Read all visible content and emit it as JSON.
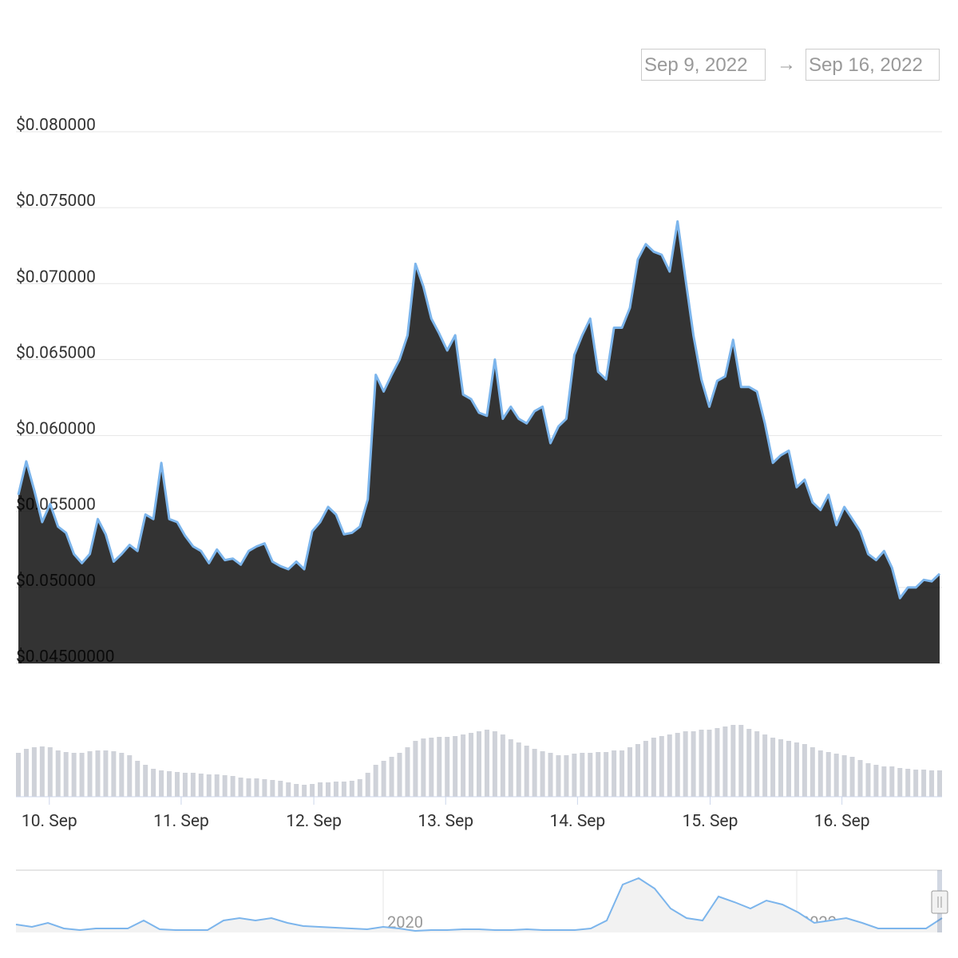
{
  "date_range": {
    "from": "Sep 9, 2022",
    "separator": "→",
    "to": "Sep 16, 2022"
  },
  "chart_data": {
    "type": "area",
    "color": "#7cb5ec",
    "fill": "#000000",
    "values": [
      0.0561,
      0.0583,
      0.0564,
      0.0543,
      0.0555,
      0.054,
      0.0536,
      0.0522,
      0.0516,
      0.0522,
      0.0545,
      0.0535,
      0.0517,
      0.0522,
      0.0528,
      0.0524,
      0.0548,
      0.0545,
      0.0582,
      0.0545,
      0.0543,
      0.0534,
      0.0527,
      0.0524,
      0.0516,
      0.0525,
      0.0518,
      0.0519,
      0.0515,
      0.0524,
      0.0527,
      0.0529,
      0.0517,
      0.0514,
      0.0512,
      0.0517,
      0.0512,
      0.0537,
      0.0543,
      0.0553,
      0.0548,
      0.0535,
      0.0536,
      0.054,
      0.0558,
      0.064,
      0.0629,
      0.064,
      0.065,
      0.0666,
      0.0713,
      0.0698,
      0.0677,
      0.0667,
      0.0656,
      0.0666,
      0.0627,
      0.0624,
      0.0615,
      0.0613,
      0.065,
      0.0611,
      0.0619,
      0.0611,
      0.0608,
      0.0616,
      0.0619,
      0.0595,
      0.0606,
      0.0611,
      0.0653,
      0.0666,
      0.0677,
      0.0642,
      0.0637,
      0.0671,
      0.0671,
      0.0684,
      0.0716,
      0.0726,
      0.0721,
      0.0719,
      0.0708,
      0.0741,
      0.0703,
      0.0666,
      0.0637,
      0.0619,
      0.0636,
      0.0639,
      0.0663,
      0.0632,
      0.0632,
      0.0629,
      0.0608,
      0.0582,
      0.0587,
      0.059,
      0.0566,
      0.0571,
      0.0556,
      0.0551,
      0.0561,
      0.0541,
      0.0553,
      0.0545,
      0.0537,
      0.0522,
      0.0518,
      0.0524,
      0.0513,
      0.0493,
      0.05,
      0.05,
      0.0505,
      0.0504,
      0.0509
    ],
    "xlim": [
      0,
      116
    ],
    "xticks": [
      {
        "value": 3.9,
        "label": "10. Sep"
      },
      {
        "value": 20.5,
        "label": "11. Sep"
      },
      {
        "value": 37.2,
        "label": "12. Sep"
      },
      {
        "value": 53.8,
        "label": "13. Sep"
      },
      {
        "value": 70.4,
        "label": "14. Sep"
      },
      {
        "value": 87.1,
        "label": "15. Sep"
      },
      {
        "value": 103.7,
        "label": "16. Sep"
      }
    ],
    "ylim": [
      0.045,
      0.08
    ],
    "yticks": [
      {
        "value": 0.08,
        "label": "$0.080000"
      },
      {
        "value": 0.075,
        "label": "$0.075000"
      },
      {
        "value": 0.07,
        "label": "$0.070000"
      },
      {
        "value": 0.065,
        "label": "$0.065000"
      },
      {
        "value": 0.06,
        "label": "$0.060000"
      },
      {
        "value": 0.055,
        "label": "$0.055000"
      },
      {
        "value": 0.05,
        "label": "$0.050000"
      },
      {
        "value": 0.045,
        "label": "$0.04500000"
      }
    ],
    "grid": true,
    "volume": {
      "color": "#cfd2d9",
      "values": [
        55,
        60,
        62,
        63,
        62,
        58,
        56,
        55,
        55,
        57,
        58,
        58,
        57,
        55,
        52,
        45,
        40,
        35,
        33,
        32,
        31,
        30,
        30,
        29,
        28,
        28,
        27,
        26,
        24,
        23,
        23,
        22,
        21,
        20,
        18,
        16,
        15,
        16,
        18,
        18,
        19,
        19,
        20,
        22,
        30,
        40,
        45,
        50,
        55,
        62,
        70,
        73,
        74,
        75,
        75,
        76,
        78,
        80,
        82,
        84,
        82,
        78,
        72,
        68,
        64,
        60,
        57,
        55,
        52,
        52,
        54,
        55,
        55,
        56,
        56,
        58,
        58,
        62,
        66,
        70,
        74,
        76,
        78,
        80,
        82,
        82,
        84,
        84,
        86,
        88,
        90,
        90,
        85,
        82,
        78,
        74,
        72,
        70,
        68,
        66,
        62,
        58,
        56,
        54,
        52,
        50,
        46,
        42,
        40,
        38,
        38,
        36,
        35,
        34,
        34,
        33,
        33
      ]
    },
    "navigator": {
      "color": "#7cb5ec",
      "values": [
        10,
        7,
        12,
        5,
        3,
        5,
        5,
        5,
        15,
        4,
        3,
        3,
        3,
        15,
        18,
        15,
        18,
        12,
        8,
        7,
        6,
        5,
        4,
        7,
        5,
        2,
        3,
        3,
        4,
        4,
        3,
        3,
        4,
        3,
        3,
        3,
        5,
        15,
        60,
        68,
        55,
        30,
        18,
        15,
        45,
        38,
        30,
        40,
        35,
        25,
        12,
        15,
        18,
        12,
        5,
        5,
        5,
        5,
        18
      ],
      "xlim": [
        0,
        58
      ],
      "xticks": [
        {
          "value": 23,
          "label": "2020"
        },
        {
          "value": 48.9,
          "label": "2022"
        }
      ]
    }
  }
}
